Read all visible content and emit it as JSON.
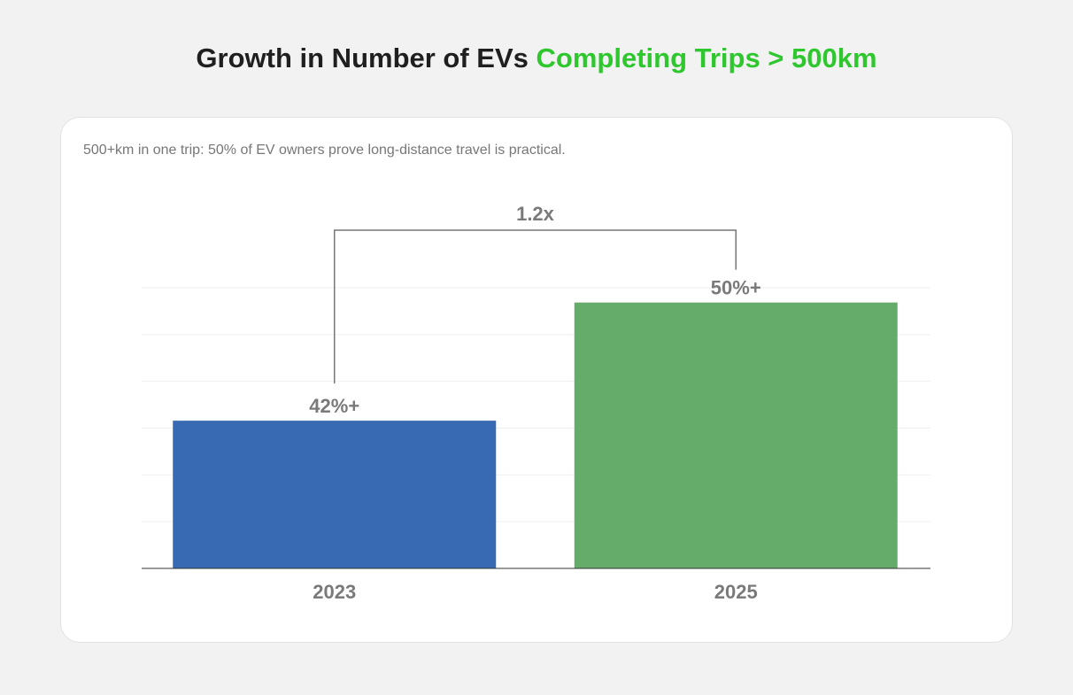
{
  "title": {
    "main": "Growth in Number of EVs",
    "highlight": "Completing Trips > 500km"
  },
  "colors": {
    "highlight": "#2ec72e",
    "bar_2023": "#376ab3",
    "bar_2025": "#65ab6a",
    "label": "#7a7a7a",
    "bracket": "#777777"
  },
  "chart_data": {
    "type": "bar",
    "title": "Growth in Number of EVs Completing Trips > 500km",
    "subtitle": "500+km in one trip: 50% of EV owners prove long-distance travel is practical.",
    "categories": [
      "2023",
      "2025"
    ],
    "values": [
      42,
      50
    ],
    "data_labels": [
      "42%+",
      "50%+"
    ],
    "annotation": "1.2x",
    "xlabel": "",
    "ylabel": "",
    "ylim": [
      32,
      51
    ],
    "grid": true,
    "legend": "none"
  }
}
